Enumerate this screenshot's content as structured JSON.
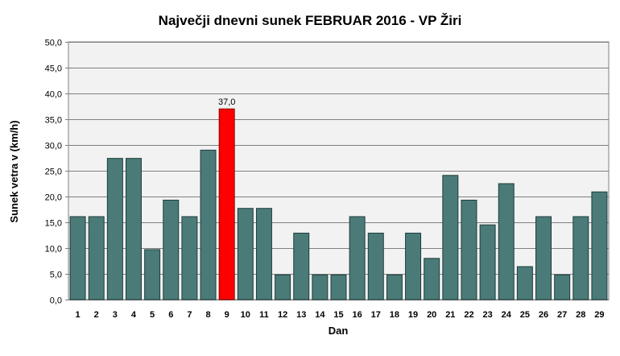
{
  "chart_data": {
    "type": "bar",
    "title": "Največji dnevni sunek FEBRUAR 2016 - VP Žiri",
    "xlabel": "Dan",
    "ylabel": "Sunek vetra v (km/h)",
    "ylim": [
      0,
      50
    ],
    "ytick_step": 5,
    "ytick_labels": [
      "0,0",
      "5,0",
      "10,0",
      "15,0",
      "20,0",
      "25,0",
      "30,0",
      "35,0",
      "40,0",
      "45,0",
      "50,0"
    ],
    "grid": "horizontal",
    "categories": [
      "1",
      "2",
      "3",
      "4",
      "5",
      "6",
      "7",
      "8",
      "9",
      "10",
      "11",
      "12",
      "13",
      "14",
      "15",
      "16",
      "17",
      "18",
      "19",
      "20",
      "21",
      "22",
      "23",
      "24",
      "25",
      "26",
      "27",
      "28",
      "29"
    ],
    "values": [
      16.1,
      16.1,
      27.4,
      27.4,
      9.7,
      19.3,
      16.1,
      29.0,
      37.0,
      17.7,
      17.7,
      4.8,
      12.9,
      4.8,
      4.8,
      16.1,
      12.9,
      4.8,
      12.9,
      8.0,
      24.1,
      19.3,
      14.5,
      22.5,
      6.4,
      16.1,
      4.8,
      16.1,
      20.9
    ],
    "highlight_index": 8,
    "data_labels": [
      {
        "index": 8,
        "text": "37,0"
      }
    ],
    "colors": {
      "bar": "#4a7b78",
      "bar_stroke": "#1f3d3b",
      "highlight": "#ff0000",
      "highlight_stroke": "#8a0000",
      "plot_bg": "#f2f2f2",
      "grid": "#808080"
    }
  }
}
